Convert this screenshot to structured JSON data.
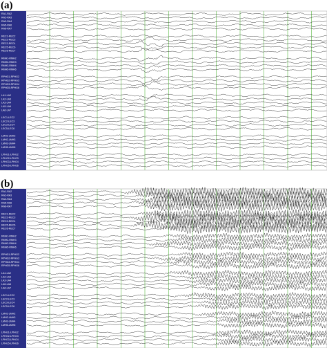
{
  "panels": [
    {
      "label": "(a)",
      "channel_groups": [
        [
          "RA1-RA2",
          "RA2-RA3",
          "RA3-RA4",
          "RA5-RA6",
          "RA6-RA7"
        ],
        [
          "REC1-REC2",
          "REC2-REC3",
          "REC3-REC4",
          "REC5-REC6",
          "REC6-REC7"
        ],
        [
          "RMH1-RMH2",
          "RMH2-RMH3",
          "RMH3-RMH4",
          "RMH5-RMH6"
        ],
        [
          "RPHG1-RPHG2",
          "RPHG2-RPHG3",
          "RPHG3-RPHG4",
          "RPHG5-RPHG6"
        ],
        [
          "LA1-LA2",
          "LA2-LA3",
          "LA3-LA4",
          "LA5-LA6",
          "LA6-LA7"
        ],
        [
          "LEC1-LEC2",
          "LEC2-LEC3",
          "LEC3-LEC4",
          "LEC5-LEC6"
        ],
        [
          "LMH1-LMH2",
          "LMH2-LMH3",
          "LMH3-LMH4",
          "LMH5-LMH6"
        ],
        [
          "LPHG1-LPHG2",
          "LPHG2-LPHG3",
          "LPHG3-LPHG4",
          "LPHG5-LPHG6"
        ]
      ]
    },
    {
      "label": "(b)",
      "channel_groups": [
        [
          "RA1-RA2",
          "RA2-RA3",
          "RA3-RA4",
          "RA5-RA6",
          "RA6-RA7"
        ],
        [
          "REC1-REC2",
          "REC2-REC3",
          "REC3-REC4",
          "REC5-REC6",
          "REC6-REC7"
        ],
        [
          "RMH1-RMH2",
          "RMH2-RMH3",
          "RMH3-RMH4",
          "RMH5-RMH6"
        ],
        [
          "RPHG1-RPHG2",
          "RPHG2-RPHG3",
          "RPHG3-RPHG4",
          "RPHG5-RPHG6"
        ],
        [
          "LA1-LA2",
          "LA2-LA3",
          "LA3-LA4",
          "LA5-LA6",
          "LA6-LA7"
        ],
        [
          "LEC1-LEC2",
          "LEC2-LEC3",
          "LEC3-LEC4",
          "LEC5-LEC6"
        ],
        [
          "LMH1-LMH2",
          "LMH2-LMH3",
          "LMH3-LMH4",
          "LMH5-LMH6"
        ],
        [
          "LPHG1-LPHG2",
          "LPHG2-LPHG3",
          "LPHG3-LPHG4",
          "LPHG5-LPHG6"
        ]
      ]
    }
  ]
}
